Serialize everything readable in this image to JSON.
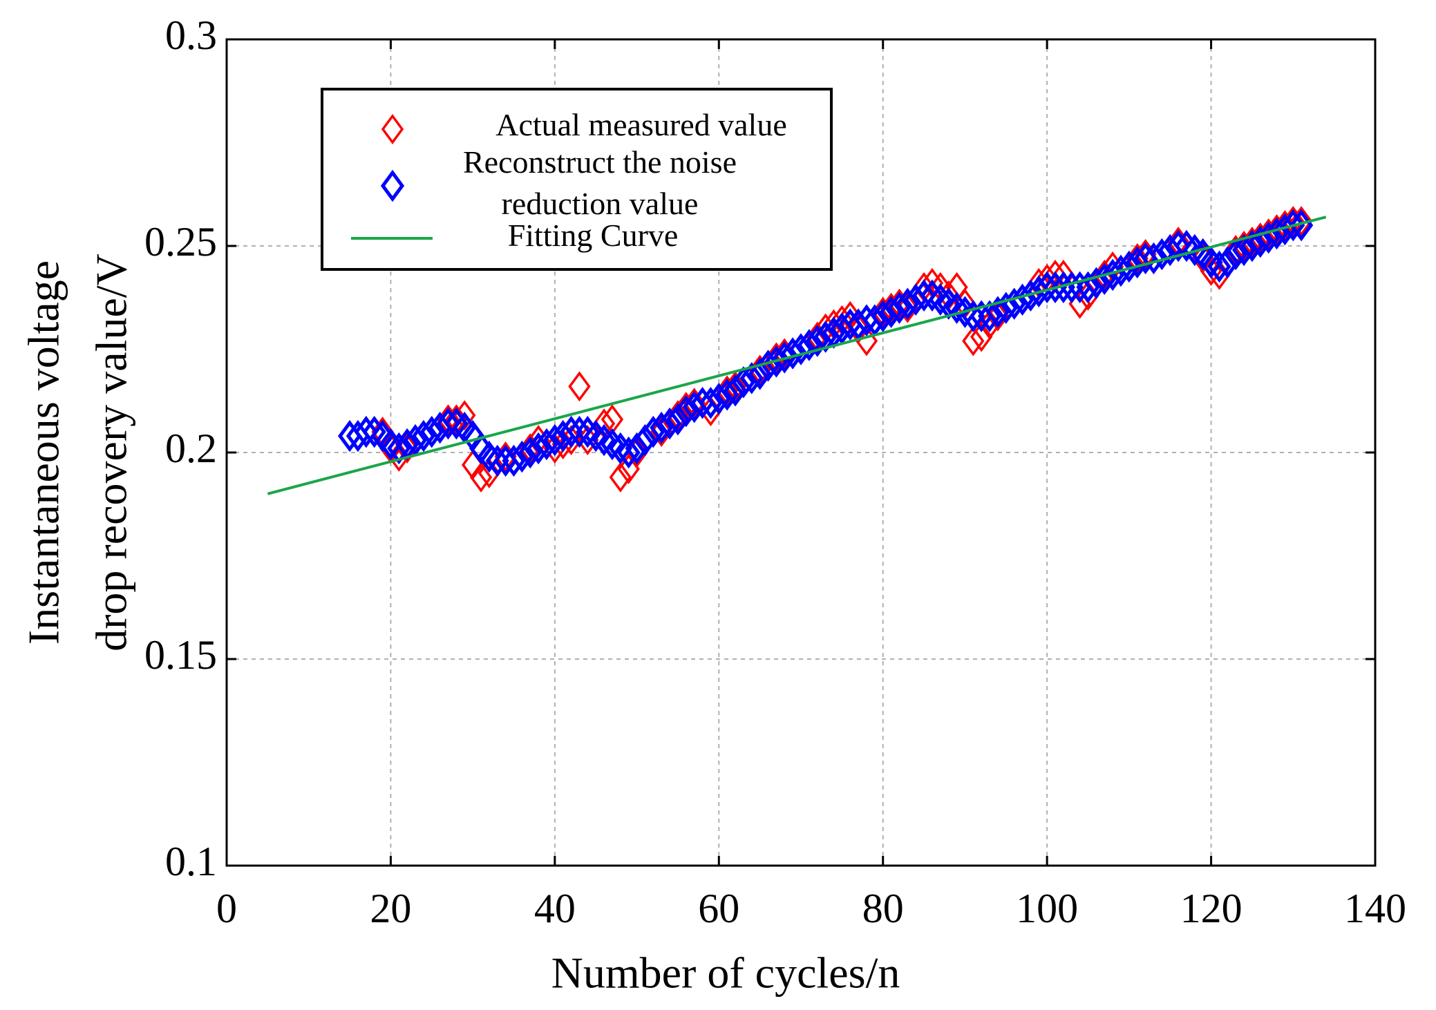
{
  "chart_data": {
    "type": "scatter",
    "xlabel": "Number of cycles/n",
    "ylabel": [
      "Instantaneous voltage",
      "drop recovery value/V"
    ],
    "xlim": [
      0,
      140
    ],
    "ylim": [
      0.1,
      0.3
    ],
    "xticks": [
      0,
      20,
      40,
      60,
      80,
      100,
      120,
      140
    ],
    "yticks": [
      0.1,
      0.15,
      0.2,
      0.25,
      0.3
    ],
    "grid": true,
    "legend": "upper left",
    "series": [
      {
        "name": "Actual measured value",
        "color": "#ff0000",
        "kind": "scatter",
        "marker": "diamond",
        "x": [
          15,
          16,
          17,
          18,
          19,
          20,
          21,
          22,
          23,
          24,
          25,
          26,
          27,
          28,
          29,
          30,
          31,
          32,
          33,
          34,
          35,
          36,
          37,
          38,
          39,
          40,
          41,
          42,
          43,
          44,
          45,
          46,
          47,
          48,
          49,
          50,
          51,
          52,
          53,
          54,
          55,
          56,
          57,
          58,
          59,
          60,
          61,
          62,
          63,
          64,
          65,
          66,
          67,
          68,
          69,
          70,
          71,
          72,
          73,
          74,
          75,
          76,
          77,
          78,
          79,
          80,
          81,
          82,
          83,
          84,
          85,
          86,
          87,
          88,
          89,
          90,
          91,
          92,
          93,
          94,
          95,
          96,
          97,
          98,
          99,
          100,
          101,
          102,
          103,
          104,
          105,
          106,
          107,
          108,
          109,
          110,
          111,
          112,
          113,
          114,
          115,
          116,
          117,
          118,
          119,
          120,
          121,
          122,
          123,
          124,
          125,
          126,
          127,
          128,
          129,
          130,
          131
        ],
        "values": [
          0.204,
          0.204,
          0.205,
          0.205,
          0.205,
          0.201,
          0.199,
          0.201,
          0.203,
          0.204,
          0.205,
          0.206,
          0.208,
          0.208,
          0.209,
          0.197,
          0.194,
          0.195,
          0.198,
          0.199,
          0.198,
          0.199,
          0.201,
          0.203,
          0.202,
          0.201,
          0.202,
          0.203,
          0.216,
          0.203,
          0.204,
          0.207,
          0.208,
          0.194,
          0.196,
          0.2,
          0.203,
          0.205,
          0.205,
          0.207,
          0.209,
          0.211,
          0.212,
          0.212,
          0.21,
          0.213,
          0.215,
          0.216,
          0.217,
          0.218,
          0.22,
          0.221,
          0.223,
          0.224,
          0.224,
          0.225,
          0.226,
          0.228,
          0.23,
          0.231,
          0.232,
          0.233,
          0.23,
          0.227,
          0.232,
          0.234,
          0.235,
          0.236,
          0.235,
          0.237,
          0.24,
          0.241,
          0.24,
          0.238,
          0.24,
          0.236,
          0.227,
          0.228,
          0.231,
          0.233,
          0.235,
          0.236,
          0.237,
          0.238,
          0.241,
          0.242,
          0.243,
          0.243,
          0.24,
          0.236,
          0.238,
          0.241,
          0.243,
          0.245,
          0.244,
          0.245,
          0.247,
          0.248,
          0.247,
          0.248,
          0.249,
          0.251,
          0.25,
          0.249,
          0.247,
          0.244,
          0.243,
          0.246,
          0.249,
          0.25,
          0.251,
          0.252,
          0.253,
          0.254,
          0.255,
          0.256,
          0.256
        ]
      },
      {
        "name": "Reconstruct the noise reduction value",
        "color": "#0000ff",
        "kind": "scatter",
        "marker": "diamond",
        "x": [
          15,
          16,
          17,
          18,
          19,
          20,
          21,
          22,
          23,
          24,
          25,
          26,
          27,
          28,
          29,
          30,
          31,
          32,
          33,
          34,
          35,
          36,
          37,
          38,
          39,
          40,
          41,
          42,
          43,
          44,
          45,
          46,
          47,
          48,
          49,
          50,
          51,
          52,
          53,
          54,
          55,
          56,
          57,
          58,
          59,
          60,
          61,
          62,
          63,
          64,
          65,
          66,
          67,
          68,
          69,
          70,
          71,
          72,
          73,
          74,
          75,
          76,
          77,
          78,
          79,
          80,
          81,
          82,
          83,
          84,
          85,
          86,
          87,
          88,
          89,
          90,
          91,
          92,
          93,
          94,
          95,
          96,
          97,
          98,
          99,
          100,
          101,
          102,
          103,
          104,
          105,
          106,
          107,
          108,
          109,
          110,
          111,
          112,
          113,
          114,
          115,
          116,
          117,
          118,
          119,
          120,
          121,
          122,
          123,
          124,
          125,
          126,
          127,
          128,
          129,
          130,
          131
        ],
        "values": [
          0.204,
          0.204,
          0.205,
          0.205,
          0.204,
          0.202,
          0.201,
          0.202,
          0.203,
          0.204,
          0.205,
          0.206,
          0.207,
          0.207,
          0.206,
          0.204,
          0.201,
          0.199,
          0.198,
          0.198,
          0.198,
          0.199,
          0.2,
          0.201,
          0.202,
          0.203,
          0.204,
          0.205,
          0.205,
          0.205,
          0.204,
          0.203,
          0.202,
          0.201,
          0.2,
          0.201,
          0.203,
          0.205,
          0.206,
          0.207,
          0.208,
          0.21,
          0.211,
          0.212,
          0.212,
          0.213,
          0.214,
          0.215,
          0.217,
          0.218,
          0.219,
          0.221,
          0.222,
          0.223,
          0.224,
          0.225,
          0.226,
          0.227,
          0.228,
          0.229,
          0.23,
          0.231,
          0.231,
          0.232,
          0.232,
          0.233,
          0.234,
          0.235,
          0.236,
          0.237,
          0.238,
          0.238,
          0.237,
          0.236,
          0.235,
          0.234,
          0.233,
          0.233,
          0.233,
          0.234,
          0.235,
          0.236,
          0.237,
          0.238,
          0.239,
          0.24,
          0.24,
          0.24,
          0.24,
          0.24,
          0.24,
          0.241,
          0.242,
          0.243,
          0.244,
          0.245,
          0.246,
          0.247,
          0.247,
          0.248,
          0.249,
          0.25,
          0.25,
          0.249,
          0.248,
          0.246,
          0.245,
          0.246,
          0.248,
          0.249,
          0.25,
          0.251,
          0.252,
          0.253,
          0.254,
          0.255,
          0.255
        ]
      },
      {
        "name": "Fitting Curve",
        "color": "#1aa64a",
        "kind": "line",
        "x": [
          5,
          134
        ],
        "values": [
          0.19,
          0.257
        ]
      }
    ]
  }
}
